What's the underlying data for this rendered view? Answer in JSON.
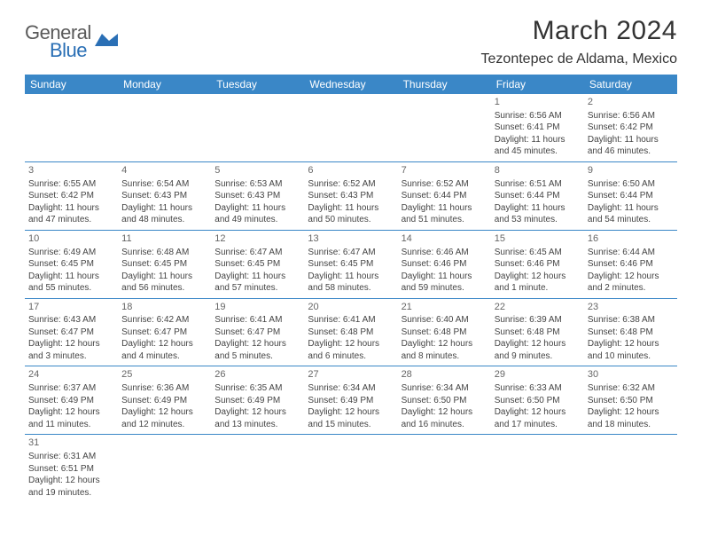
{
  "brand": {
    "general": "General",
    "blue": "Blue"
  },
  "title": "March 2024",
  "location": "Tezontepec de Aldama, Mexico",
  "colors": {
    "header_bg": "#3a87c7",
    "header_fg": "#ffffff",
    "row_border": "#3a87c7",
    "logo_gray": "#5a5a5a",
    "logo_blue": "#2a6fb5"
  },
  "weekdays": [
    "Sunday",
    "Monday",
    "Tuesday",
    "Wednesday",
    "Thursday",
    "Friday",
    "Saturday"
  ],
  "weeks": [
    [
      null,
      null,
      null,
      null,
      null,
      {
        "n": "1",
        "sr": "Sunrise: 6:56 AM",
        "ss": "Sunset: 6:41 PM",
        "d1": "Daylight: 11 hours",
        "d2": "and 45 minutes."
      },
      {
        "n": "2",
        "sr": "Sunrise: 6:56 AM",
        "ss": "Sunset: 6:42 PM",
        "d1": "Daylight: 11 hours",
        "d2": "and 46 minutes."
      }
    ],
    [
      {
        "n": "3",
        "sr": "Sunrise: 6:55 AM",
        "ss": "Sunset: 6:42 PM",
        "d1": "Daylight: 11 hours",
        "d2": "and 47 minutes."
      },
      {
        "n": "4",
        "sr": "Sunrise: 6:54 AM",
        "ss": "Sunset: 6:43 PM",
        "d1": "Daylight: 11 hours",
        "d2": "and 48 minutes."
      },
      {
        "n": "5",
        "sr": "Sunrise: 6:53 AM",
        "ss": "Sunset: 6:43 PM",
        "d1": "Daylight: 11 hours",
        "d2": "and 49 minutes."
      },
      {
        "n": "6",
        "sr": "Sunrise: 6:52 AM",
        "ss": "Sunset: 6:43 PM",
        "d1": "Daylight: 11 hours",
        "d2": "and 50 minutes."
      },
      {
        "n": "7",
        "sr": "Sunrise: 6:52 AM",
        "ss": "Sunset: 6:44 PM",
        "d1": "Daylight: 11 hours",
        "d2": "and 51 minutes."
      },
      {
        "n": "8",
        "sr": "Sunrise: 6:51 AM",
        "ss": "Sunset: 6:44 PM",
        "d1": "Daylight: 11 hours",
        "d2": "and 53 minutes."
      },
      {
        "n": "9",
        "sr": "Sunrise: 6:50 AM",
        "ss": "Sunset: 6:44 PM",
        "d1": "Daylight: 11 hours",
        "d2": "and 54 minutes."
      }
    ],
    [
      {
        "n": "10",
        "sr": "Sunrise: 6:49 AM",
        "ss": "Sunset: 6:45 PM",
        "d1": "Daylight: 11 hours",
        "d2": "and 55 minutes."
      },
      {
        "n": "11",
        "sr": "Sunrise: 6:48 AM",
        "ss": "Sunset: 6:45 PM",
        "d1": "Daylight: 11 hours",
        "d2": "and 56 minutes."
      },
      {
        "n": "12",
        "sr": "Sunrise: 6:47 AM",
        "ss": "Sunset: 6:45 PM",
        "d1": "Daylight: 11 hours",
        "d2": "and 57 minutes."
      },
      {
        "n": "13",
        "sr": "Sunrise: 6:47 AM",
        "ss": "Sunset: 6:45 PM",
        "d1": "Daylight: 11 hours",
        "d2": "and 58 minutes."
      },
      {
        "n": "14",
        "sr": "Sunrise: 6:46 AM",
        "ss": "Sunset: 6:46 PM",
        "d1": "Daylight: 11 hours",
        "d2": "and 59 minutes."
      },
      {
        "n": "15",
        "sr": "Sunrise: 6:45 AM",
        "ss": "Sunset: 6:46 PM",
        "d1": "Daylight: 12 hours",
        "d2": "and 1 minute."
      },
      {
        "n": "16",
        "sr": "Sunrise: 6:44 AM",
        "ss": "Sunset: 6:46 PM",
        "d1": "Daylight: 12 hours",
        "d2": "and 2 minutes."
      }
    ],
    [
      {
        "n": "17",
        "sr": "Sunrise: 6:43 AM",
        "ss": "Sunset: 6:47 PM",
        "d1": "Daylight: 12 hours",
        "d2": "and 3 minutes."
      },
      {
        "n": "18",
        "sr": "Sunrise: 6:42 AM",
        "ss": "Sunset: 6:47 PM",
        "d1": "Daylight: 12 hours",
        "d2": "and 4 minutes."
      },
      {
        "n": "19",
        "sr": "Sunrise: 6:41 AM",
        "ss": "Sunset: 6:47 PM",
        "d1": "Daylight: 12 hours",
        "d2": "and 5 minutes."
      },
      {
        "n": "20",
        "sr": "Sunrise: 6:41 AM",
        "ss": "Sunset: 6:48 PM",
        "d1": "Daylight: 12 hours",
        "d2": "and 6 minutes."
      },
      {
        "n": "21",
        "sr": "Sunrise: 6:40 AM",
        "ss": "Sunset: 6:48 PM",
        "d1": "Daylight: 12 hours",
        "d2": "and 8 minutes."
      },
      {
        "n": "22",
        "sr": "Sunrise: 6:39 AM",
        "ss": "Sunset: 6:48 PM",
        "d1": "Daylight: 12 hours",
        "d2": "and 9 minutes."
      },
      {
        "n": "23",
        "sr": "Sunrise: 6:38 AM",
        "ss": "Sunset: 6:48 PM",
        "d1": "Daylight: 12 hours",
        "d2": "and 10 minutes."
      }
    ],
    [
      {
        "n": "24",
        "sr": "Sunrise: 6:37 AM",
        "ss": "Sunset: 6:49 PM",
        "d1": "Daylight: 12 hours",
        "d2": "and 11 minutes."
      },
      {
        "n": "25",
        "sr": "Sunrise: 6:36 AM",
        "ss": "Sunset: 6:49 PM",
        "d1": "Daylight: 12 hours",
        "d2": "and 12 minutes."
      },
      {
        "n": "26",
        "sr": "Sunrise: 6:35 AM",
        "ss": "Sunset: 6:49 PM",
        "d1": "Daylight: 12 hours",
        "d2": "and 13 minutes."
      },
      {
        "n": "27",
        "sr": "Sunrise: 6:34 AM",
        "ss": "Sunset: 6:49 PM",
        "d1": "Daylight: 12 hours",
        "d2": "and 15 minutes."
      },
      {
        "n": "28",
        "sr": "Sunrise: 6:34 AM",
        "ss": "Sunset: 6:50 PM",
        "d1": "Daylight: 12 hours",
        "d2": "and 16 minutes."
      },
      {
        "n": "29",
        "sr": "Sunrise: 6:33 AM",
        "ss": "Sunset: 6:50 PM",
        "d1": "Daylight: 12 hours",
        "d2": "and 17 minutes."
      },
      {
        "n": "30",
        "sr": "Sunrise: 6:32 AM",
        "ss": "Sunset: 6:50 PM",
        "d1": "Daylight: 12 hours",
        "d2": "and 18 minutes."
      }
    ],
    [
      {
        "n": "31",
        "sr": "Sunrise: 6:31 AM",
        "ss": "Sunset: 6:51 PM",
        "d1": "Daylight: 12 hours",
        "d2": "and 19 minutes."
      },
      null,
      null,
      null,
      null,
      null,
      null
    ]
  ]
}
